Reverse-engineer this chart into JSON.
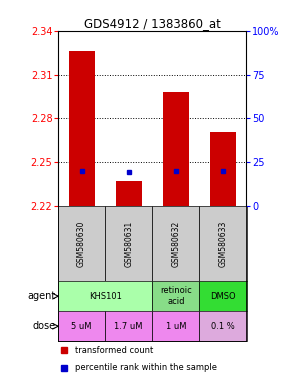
{
  "title": "GDS4912 / 1383860_at",
  "samples": [
    "GSM580630",
    "GSM580631",
    "GSM580632",
    "GSM580633"
  ],
  "bar_bottoms": [
    2.22,
    2.22,
    2.22,
    2.22
  ],
  "bar_tops": [
    2.326,
    2.237,
    2.298,
    2.271
  ],
  "percentile_values": [
    2.244,
    2.243,
    2.244,
    2.244
  ],
  "ylim": [
    2.22,
    2.34
  ],
  "yticks": [
    2.22,
    2.25,
    2.28,
    2.31,
    2.34
  ],
  "y2ticks": [
    0,
    25,
    50,
    75,
    100
  ],
  "y2labels": [
    "0",
    "25",
    "50",
    "75",
    "100%"
  ],
  "bar_color": "#cc0000",
  "percentile_color": "#0000cc",
  "sample_bg_color": "#cccccc",
  "agent_groups": [
    {
      "cols": [
        0,
        1
      ],
      "label": "KHS101",
      "color": "#aaffaa"
    },
    {
      "cols": [
        2,
        2
      ],
      "label": "retinoic\nacid",
      "color": "#88dd88"
    },
    {
      "cols": [
        3,
        3
      ],
      "label": "DMSO",
      "color": "#33dd33"
    }
  ],
  "dose_groups": [
    {
      "cols": [
        0,
        0
      ],
      "label": "5 uM",
      "color": "#ee88ee"
    },
    {
      "cols": [
        1,
        1
      ],
      "label": "1.7 uM",
      "color": "#ee88ee"
    },
    {
      "cols": [
        2,
        2
      ],
      "label": "1 uM",
      "color": "#ee88ee"
    },
    {
      "cols": [
        3,
        3
      ],
      "label": "0.1 %",
      "color": "#ddaadd"
    }
  ],
  "legend_bar_color": "#cc0000",
  "legend_percentile_color": "#0000cc"
}
